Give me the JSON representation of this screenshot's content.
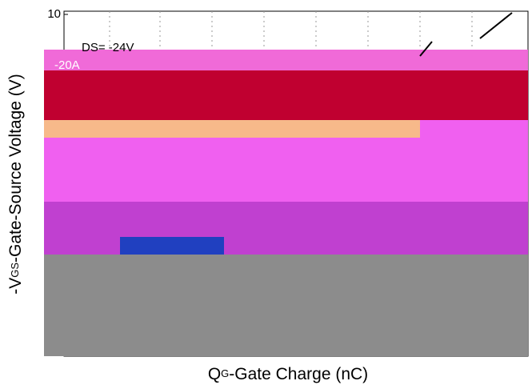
{
  "chart_data": {
    "type": "line",
    "y_label": {
      "main": "-V",
      "sub": "GS",
      "rest": "-Gate-Source Voltage (V)"
    },
    "x_label": {
      "main": "Q",
      "sub": "G",
      "rest": "-Gate Charge (nC)"
    },
    "annotations": [
      "DS= -24V",
      "-20A"
    ],
    "ylim": [
      0,
      10
    ],
    "yticks": [
      10
    ]
  }
}
